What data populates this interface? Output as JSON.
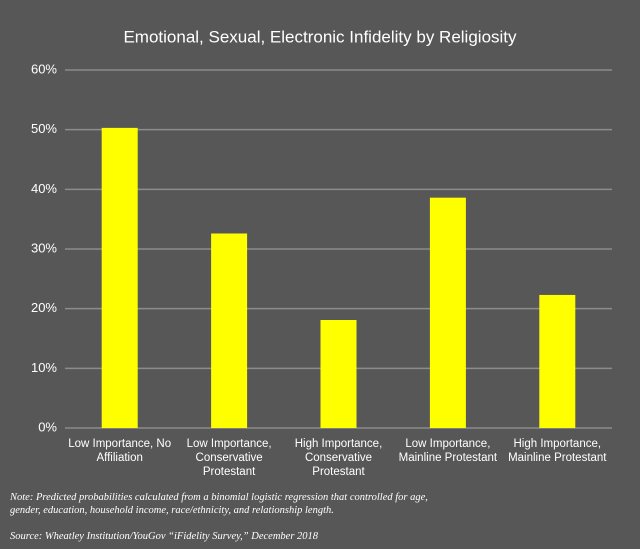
{
  "chart_data": {
    "type": "bar",
    "title": "Emotional, Sexual, Electronic Infidelity by Religiosity",
    "categories": [
      "Low Importance, No Affiliation",
      "Low Importance, Conservative Protestant",
      "High Importance, Conservative Protestant",
      "Low Importance, Mainline Protestant",
      "High Importance, Mainline Protestant"
    ],
    "values": [
      50.3,
      32.6,
      18.1,
      38.6,
      22.3
    ],
    "color": "#ffff00",
    "ylim": [
      0,
      60
    ],
    "yticks": [
      {
        "value": 0,
        "label": "0%"
      },
      {
        "value": 10,
        "label": "10%"
      },
      {
        "value": 20,
        "label": "20%"
      },
      {
        "value": 30,
        "label": "30%"
      },
      {
        "value": 40,
        "label": "40%"
      },
      {
        "value": 50,
        "label": "50%"
      },
      {
        "value": 60,
        "label": "60%"
      }
    ],
    "grid": true,
    "note": "Note: Predicted probabilities calculated from a binomial logistic regression that controlled for age, gender, education, household income, race/ethnicity, and relationship length.",
    "source": "Source: Wheatley Institution/YouGov “iFidelity Survey,” December 2018"
  }
}
